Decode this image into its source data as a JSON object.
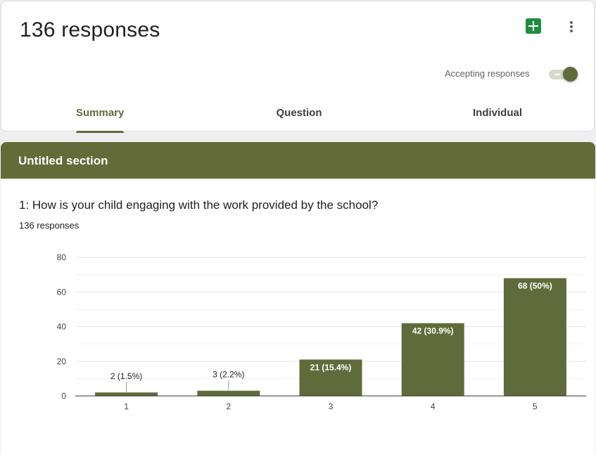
{
  "header": {
    "title": "136 responses",
    "sheets_icon": "google-sheets-icon",
    "more_icon": "more-vert-icon",
    "accepting_label": "Accepting responses",
    "accepting": true
  },
  "tabs": [
    {
      "label": "Summary",
      "active": true
    },
    {
      "label": "Question",
      "active": false
    },
    {
      "label": "Individual",
      "active": false
    }
  ],
  "section": {
    "title": "Untitled section"
  },
  "question": {
    "text": "1: How is your child engaging with the work provided by the school?",
    "response_count": "136 responses"
  },
  "colors": {
    "accent": "#5f6b3a",
    "header_bg": "#636b38",
    "bar": "#5f6b3a"
  },
  "chart_data": {
    "type": "bar",
    "categories": [
      "1",
      "2",
      "3",
      "4",
      "5"
    ],
    "values": [
      2,
      3,
      21,
      42,
      68
    ],
    "data_labels": [
      "2 (1.5%)",
      "3 (2.2%)",
      "21 (15.4%)",
      "42 (30.9%)",
      "68 (50%)"
    ],
    "ylim": [
      0,
      80
    ],
    "yticks": [
      0,
      20,
      40,
      60,
      80
    ],
    "title": "",
    "xlabel": "",
    "ylabel": "",
    "grid": true
  }
}
